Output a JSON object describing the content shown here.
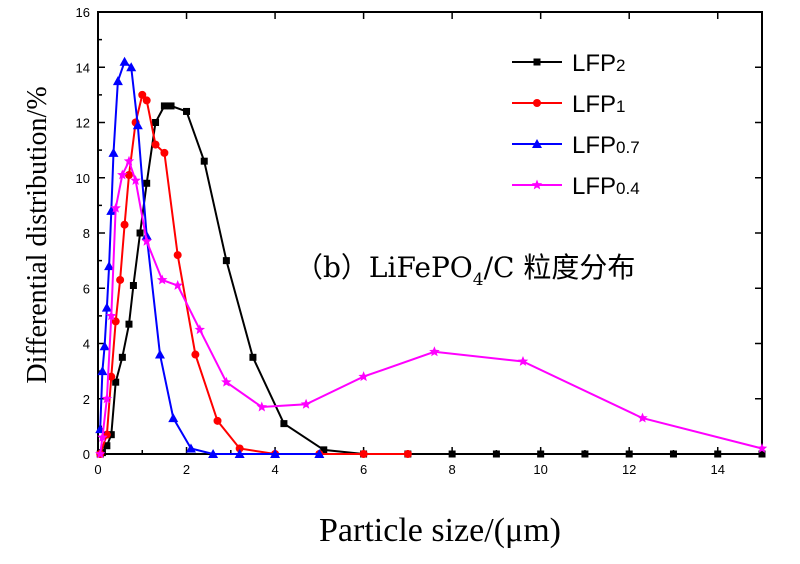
{
  "chart_data": {
    "type": "line",
    "title": "",
    "xlabel": "Particle size/(μm)",
    "ylabel": "Differential distribution/%",
    "xlim": [
      0,
      15
    ],
    "ylim": [
      0,
      16
    ],
    "x_ticks": [
      "0",
      "2",
      "4",
      "6",
      "8",
      "10",
      "12",
      "14"
    ],
    "y_ticks": [
      "0",
      "2",
      "4",
      "6",
      "8",
      "10",
      "12",
      "14",
      "16"
    ],
    "x_tick_values": [
      0,
      2,
      4,
      6,
      8,
      10,
      12,
      14
    ],
    "y_tick_values": [
      0,
      2,
      4,
      6,
      8,
      10,
      12,
      14,
      16
    ],
    "grid": false,
    "legend_position": "top-right",
    "annotation": {
      "prefix": "（b）LiFePO",
      "subscript": "4",
      "suffix": "/C 粒度分布"
    },
    "series": [
      {
        "name": "LFP2",
        "legend_main": "LFP",
        "legend_sub": "2",
        "color": "#000000",
        "marker": "square",
        "x": [
          0.05,
          0.1,
          0.2,
          0.3,
          0.4,
          0.55,
          0.7,
          0.8,
          0.95,
          1.1,
          1.3,
          1.5,
          1.65,
          2.0,
          2.4,
          2.9,
          3.5,
          4.2,
          5.1,
          6.0,
          7.0,
          8.0,
          9.0,
          10.0,
          11.0,
          12.0,
          13.0,
          14.0,
          15.0
        ],
        "y": [
          0.0,
          0.05,
          0.3,
          0.7,
          2.6,
          3.5,
          4.7,
          6.1,
          8.0,
          9.8,
          12.0,
          12.6,
          12.6,
          12.4,
          10.6,
          7.0,
          3.5,
          1.1,
          0.15,
          0.0,
          0.0,
          0.0,
          0.0,
          0.0,
          0.0,
          0.0,
          0.0,
          0.0,
          0.0
        ]
      },
      {
        "name": "LFP1",
        "legend_main": "LFP",
        "legend_sub": "1",
        "color": "#ff0000",
        "marker": "circle",
        "x": [
          0.05,
          0.2,
          0.3,
          0.4,
          0.5,
          0.6,
          0.7,
          0.85,
          1.0,
          1.1,
          1.3,
          1.5,
          1.8,
          2.2,
          2.7,
          3.2,
          4.0,
          5.0,
          6.0,
          7.0
        ],
        "y": [
          0.0,
          0.7,
          2.8,
          4.8,
          6.3,
          8.3,
          10.1,
          12.0,
          13.0,
          12.8,
          11.2,
          10.9,
          7.2,
          3.6,
          1.2,
          0.2,
          0.0,
          0.0,
          0.0,
          0.0
        ]
      },
      {
        "name": "LFP0.7",
        "legend_main": "LFP",
        "legend_sub": "0.7",
        "color": "#0000ff",
        "marker": "triangle",
        "x": [
          0.05,
          0.1,
          0.15,
          0.2,
          0.25,
          0.3,
          0.35,
          0.45,
          0.6,
          0.75,
          0.9,
          1.1,
          1.4,
          1.7,
          2.1,
          2.6,
          3.2,
          4.0,
          5.0
        ],
        "y": [
          0.9,
          3.0,
          3.9,
          5.3,
          6.8,
          8.8,
          10.9,
          13.5,
          14.2,
          14.0,
          11.9,
          7.9,
          3.6,
          1.3,
          0.2,
          0.0,
          0.0,
          0.0,
          0.0
        ]
      },
      {
        "name": "LFP0.4",
        "legend_main": "LFP",
        "legend_sub": "0.4",
        "color": "#ff00ff",
        "marker": "star",
        "x": [
          0.05,
          0.1,
          0.2,
          0.3,
          0.4,
          0.55,
          0.7,
          0.85,
          1.1,
          1.45,
          1.8,
          2.3,
          2.9,
          3.7,
          4.7,
          6.0,
          7.6,
          9.6,
          12.3,
          15.0
        ],
        "y": [
          0.0,
          0.6,
          2.0,
          5.0,
          8.9,
          10.1,
          10.6,
          9.9,
          7.7,
          6.3,
          6.1,
          4.5,
          2.6,
          1.7,
          1.8,
          2.8,
          3.7,
          3.35,
          1.3,
          0.2
        ]
      }
    ]
  }
}
